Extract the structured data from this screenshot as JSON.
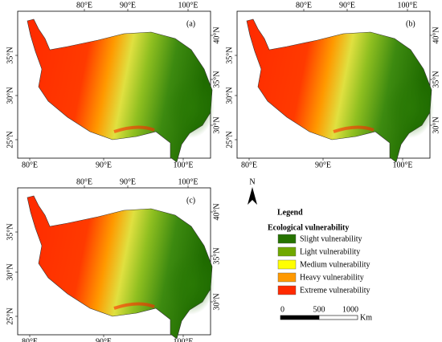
{
  "panels": [
    {
      "label": "(a)"
    },
    {
      "label": "(b)"
    },
    {
      "label": "(c)"
    }
  ],
  "graticule": {
    "top": [
      "80°E",
      "90°E",
      "100°E"
    ],
    "bottom": [
      "80°E",
      "90°E",
      "100°E"
    ],
    "left": [
      "35°N",
      "30°N",
      "25°N"
    ],
    "right": [
      "40°N",
      "35°N",
      "30°N"
    ]
  },
  "north": "N",
  "legend": {
    "title": "Legend",
    "subtitle": "Ecological vulnerability",
    "items": [
      {
        "name": "Slight vulnerability",
        "color": "#267300"
      },
      {
        "name": "Light vulnerability",
        "color": "#70a800"
      },
      {
        "name": "Medium vulnerability",
        "color": "#ffff00"
      },
      {
        "name": "Heavy vulnerability",
        "color": "#ff9900"
      },
      {
        "name": "Extreme vulnerability",
        "color": "#ff2a00"
      }
    ]
  },
  "scale": {
    "labels": [
      "0",
      "500",
      "1000"
    ],
    "unit": "Km"
  }
}
